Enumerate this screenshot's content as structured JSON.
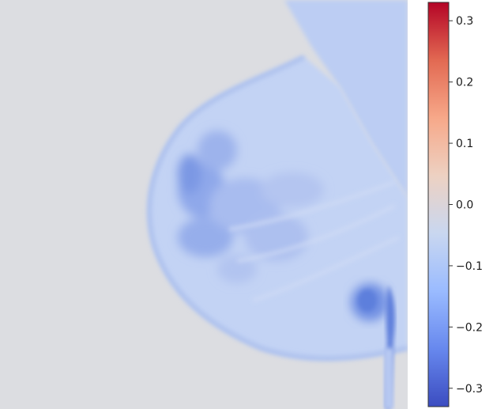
{
  "image": {
    "subject": "mammogram-attribution-map",
    "colormap": "coolwarm",
    "background_color": "#dcdde1",
    "tissue_color": "#c2d3f3",
    "dense_color": "#7f9be6"
  },
  "colorbar": {
    "min": -0.33,
    "max": 0.33,
    "ticks": [
      {
        "value": 0.3,
        "label": "0.3"
      },
      {
        "value": 0.2,
        "label": "0.2"
      },
      {
        "value": 0.1,
        "label": "0.1"
      },
      {
        "value": 0.0,
        "label": "0.0"
      },
      {
        "value": -0.1,
        "label": "−0.1"
      },
      {
        "value": -0.2,
        "label": "−0.2"
      },
      {
        "value": -0.3,
        "label": "−0.3"
      }
    ],
    "stops": [
      "#3b4cc0",
      "#6788ee",
      "#9abbff",
      "#c9d7f0",
      "#edd1c2",
      "#f7a889",
      "#e26952",
      "#b40426"
    ]
  }
}
